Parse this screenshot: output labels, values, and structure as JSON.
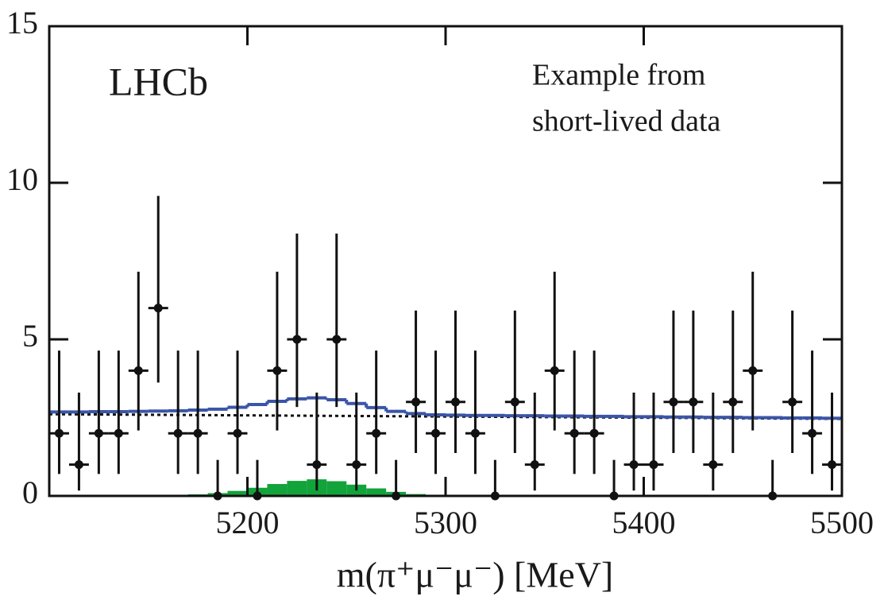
{
  "chart_data": {
    "type": "histogram",
    "label": "LHCb",
    "annotation": [
      "Example from",
      "short-lived data"
    ],
    "xlabel": "m(π⁺μ⁻μ⁻) [MeV]",
    "xlim": [
      5100,
      5500
    ],
    "ylim": [
      0,
      15
    ],
    "xticks": [
      5200,
      5300,
      5400,
      5500
    ],
    "yticks": [
      0,
      5,
      10,
      15
    ],
    "bins": [
      5100,
      5110,
      5120,
      5130,
      5140,
      5150,
      5160,
      5170,
      5180,
      5190,
      5200,
      5210,
      5220,
      5230,
      5240,
      5250,
      5260,
      5270,
      5280,
      5290,
      5300,
      5310,
      5320,
      5330,
      5340,
      5350,
      5360,
      5370,
      5380,
      5390,
      5400,
      5410,
      5420,
      5430,
      5440,
      5450,
      5460,
      5470,
      5480,
      5490,
      5500
    ],
    "data": {
      "color": "#111111",
      "values": [
        2,
        1,
        2,
        2,
        4,
        6,
        2,
        2,
        0,
        2,
        0,
        4,
        5,
        1,
        5,
        1,
        2,
        0,
        3,
        2,
        3,
        2,
        0,
        3,
        1,
        4,
        2,
        2,
        0,
        1,
        1,
        3,
        3,
        1,
        3,
        4,
        0,
        3,
        2,
        1
      ],
      "err_low": [
        1.3,
        0.83,
        1.3,
        1.3,
        1.91,
        2.38,
        1.3,
        1.3,
        0,
        1.3,
        0,
        1.91,
        2.16,
        0.83,
        2.16,
        0.83,
        1.3,
        0,
        1.63,
        1.3,
        1.63,
        1.3,
        0,
        1.63,
        0.83,
        1.91,
        1.3,
        1.3,
        0,
        0.83,
        0.83,
        1.63,
        1.63,
        0.83,
        1.63,
        1.91,
        0,
        1.63,
        1.3,
        0.83
      ],
      "err_high": [
        2.64,
        2.3,
        2.64,
        2.64,
        3.16,
        3.58,
        2.64,
        2.64,
        1.15,
        2.64,
        1.15,
        3.16,
        3.38,
        2.3,
        3.38,
        2.3,
        2.64,
        1.15,
        2.92,
        2.64,
        2.92,
        2.64,
        1.15,
        2.92,
        2.3,
        3.16,
        2.64,
        2.64,
        1.15,
        2.3,
        2.3,
        2.92,
        2.92,
        2.3,
        2.92,
        3.16,
        1.15,
        2.92,
        2.64,
        2.3
      ]
    },
    "fit": {
      "color": "#3a55a8",
      "values": [
        2.68,
        2.68,
        2.69,
        2.69,
        2.7,
        2.71,
        2.72,
        2.74,
        2.77,
        2.83,
        2.92,
        3.02,
        3.1,
        3.13,
        3.07,
        2.95,
        2.82,
        2.7,
        2.63,
        2.59,
        2.58,
        2.57,
        2.57,
        2.56,
        2.56,
        2.55,
        2.55,
        2.54,
        2.54,
        2.53,
        2.53,
        2.52,
        2.52,
        2.51,
        2.51,
        2.5,
        2.5,
        2.49,
        2.49,
        2.48
      ]
    },
    "signal": {
      "color": "#12a33a",
      "values": [
        0,
        0,
        0,
        0.01,
        0.01,
        0.02,
        0.03,
        0.05,
        0.09,
        0.16,
        0.26,
        0.38,
        0.48,
        0.53,
        0.47,
        0.36,
        0.24,
        0.13,
        0.06,
        0.03,
        0.01,
        0,
        0,
        0,
        0,
        0,
        0,
        0,
        0,
        0,
        0,
        0,
        0,
        0,
        0,
        0,
        0,
        0,
        0,
        0
      ]
    },
    "background": {
      "color": "#111111",
      "x": [
        5100,
        5500
      ],
      "y": [
        2.61,
        2.46
      ]
    }
  }
}
